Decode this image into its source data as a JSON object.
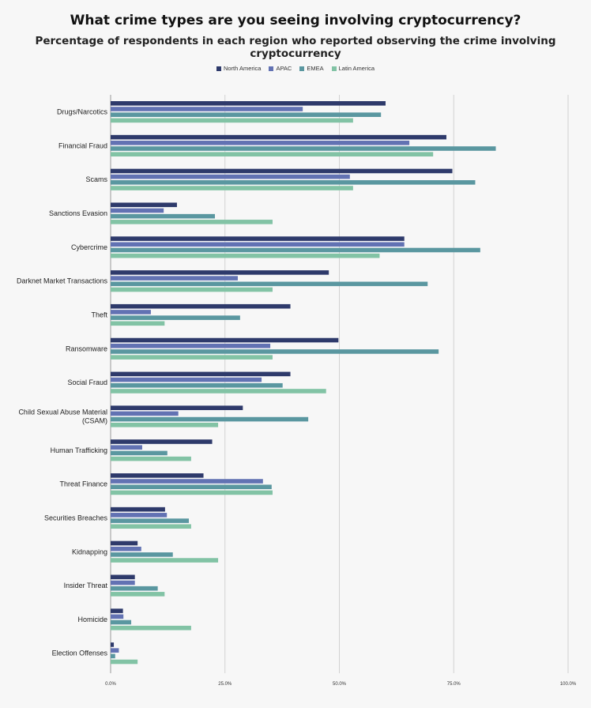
{
  "chart_data": {
    "type": "bar",
    "orientation": "horizontal",
    "title": "What crime types are you seeing involving cryptocurrency?",
    "subtitle": "Percentage of respondents in each region who reported observing the crime involving cryptocurrency",
    "categories": [
      [
        "Drugs/Narcotics"
      ],
      [
        "Financial Fraud"
      ],
      [
        "Scams"
      ],
      [
        "Sanctions Evasion"
      ],
      [
        "Cybercrime"
      ],
      [
        "Darknet Market Transactions"
      ],
      [
        "Theft"
      ],
      [
        "Ransomware"
      ],
      [
        "Social Fraud"
      ],
      [
        "Child Sexual Abuse Material",
        "(CSAM)"
      ],
      [
        "Human Trafficking"
      ],
      [
        "Threat Finance"
      ],
      [
        "Securities Breaches"
      ],
      [
        "Kidnapping"
      ],
      [
        "Insider Threat"
      ],
      [
        "Homicide"
      ],
      [
        "Election Offenses"
      ]
    ],
    "series": [
      {
        "name": "North America",
        "color": "#2e3a6b",
        "values": [
          60.1,
          73.4,
          74.7,
          14.5,
          64.2,
          47.7,
          39.3,
          49.8,
          39.3,
          28.9,
          22.2,
          20.3,
          11.9,
          5.9,
          5.3,
          2.7,
          0.7
        ]
      },
      {
        "name": "APAC",
        "color": "#6272b3",
        "values": [
          42.0,
          65.3,
          52.3,
          11.6,
          64.2,
          27.8,
          8.8,
          34.9,
          33.0,
          14.8,
          6.9,
          33.3,
          12.3,
          6.7,
          5.3,
          2.8,
          1.8
        ]
      },
      {
        "name": "EMEA",
        "color": "#5a97a0",
        "values": [
          59.1,
          84.2,
          79.7,
          22.8,
          80.8,
          69.3,
          28.3,
          71.7,
          37.6,
          43.2,
          12.4,
          35.2,
          17.1,
          13.6,
          10.3,
          4.5,
          1.0
        ]
      },
      {
        "name": "Latin America",
        "color": "#82c3a5",
        "values": [
          53.0,
          70.5,
          53.0,
          35.4,
          58.8,
          35.4,
          11.8,
          35.4,
          47.1,
          23.5,
          17.6,
          35.4,
          17.6,
          23.5,
          11.8,
          17.6,
          5.9
        ]
      }
    ],
    "xlim": [
      0,
      100
    ],
    "xticks": [
      "0.0%",
      "25.0%",
      "50.0%",
      "75.0%",
      "100.0%"
    ],
    "xtick_values": [
      0,
      25,
      50,
      75,
      100
    ],
    "grid": true,
    "legend_position": "top-center"
  }
}
